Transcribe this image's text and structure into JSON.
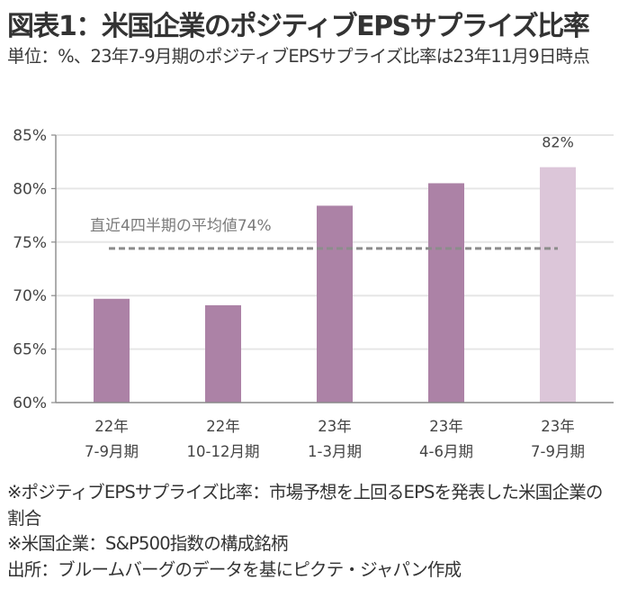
{
  "header": {
    "title": "図表1：米国企業のポジティブEPSサプライズ比率",
    "subtitle": "単位：%、23年7-9月期のポジティブEPSサプライズ比率は23年11月9日時点"
  },
  "colors": {
    "bar": "#ac82a6",
    "bar_highlight": "#dcc6d9",
    "average_line": "#8c8c8c",
    "gridline": "#e6e6e6",
    "axis": "#8a8a8a"
  },
  "chart_data": {
    "type": "bar",
    "title": "米国企業のポジティブEPSサプライズ比率",
    "xlabel": "",
    "ylabel": "%",
    "ylim": [
      60,
      85
    ],
    "yticks": [
      60,
      65,
      70,
      75,
      80,
      85
    ],
    "ytick_labels": [
      "60%",
      "65%",
      "70%",
      "75%",
      "80%",
      "85%"
    ],
    "grid": true,
    "categories": [
      {
        "line1": "22年",
        "line2": "7-9月期"
      },
      {
        "line1": "22年",
        "line2": "10-12月期"
      },
      {
        "line1": "23年",
        "line2": "1-3月期"
      },
      {
        "line1": "23年",
        "line2": "4-6月期"
      },
      {
        "line1": "23年",
        "line2": "7-9月期"
      }
    ],
    "series": [
      {
        "name": "ポジティブEPSサプライズ比率",
        "values": [
          69.7,
          69.1,
          78.4,
          80.5,
          82.0
        ],
        "highlight_index": 4,
        "data_labels": [
          null,
          null,
          null,
          null,
          "82%"
        ]
      }
    ],
    "reference_line": {
      "label": "直近4四半期の平均値74%",
      "value": 74.4,
      "style": "dashed",
      "from_category": 0,
      "to_category": 4
    }
  },
  "notes": [
    "※ポジティブEPSサプライズ比率：市場予想を上回るEPSを発表した米国企業の割合",
    "※米国企業：S&P500指数の構成銘柄",
    "出所：ブルームバーグのデータを基にピクテ・ジャパン作成"
  ]
}
